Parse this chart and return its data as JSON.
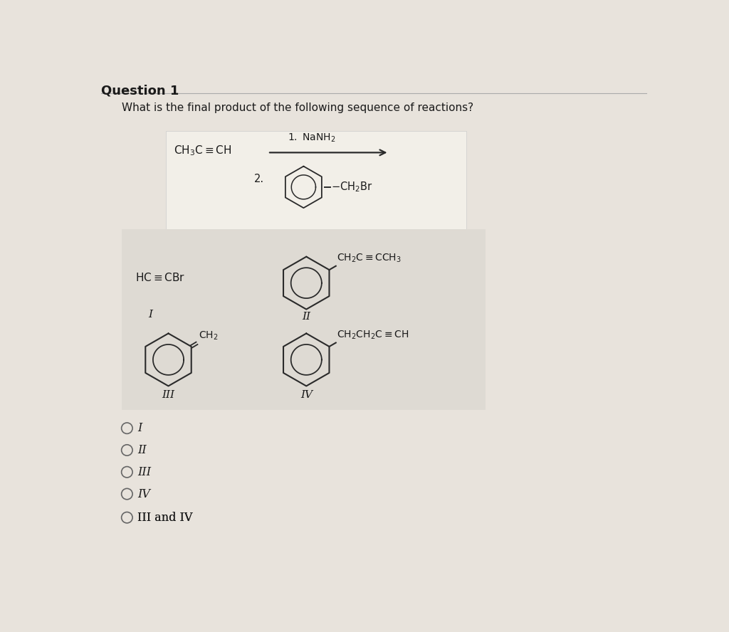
{
  "bg_color": "#e8e3dc",
  "reaction_box_bg": "#f2efe8",
  "answer_box_bg": "#dedad3",
  "title": "Question 1",
  "question": "What is the final product of the following sequence of reactions?",
  "options": [
    "I",
    "II",
    "III",
    "IV",
    "III and IV"
  ],
  "text_color": "#1a1a1a",
  "line_color": "#2a2a2a",
  "fig_width": 10.24,
  "fig_height": 8.88,
  "dpi": 100
}
